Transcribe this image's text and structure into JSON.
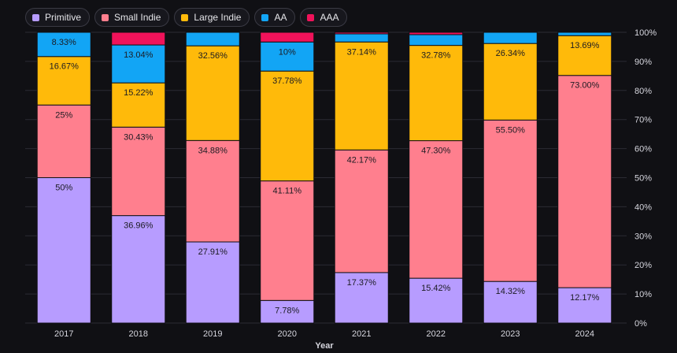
{
  "chart_data": {
    "type": "bar",
    "stacked": true,
    "xlabel": "Year",
    "ylabel": "",
    "ylim": [
      0,
      100
    ],
    "y_tick_suffix": "%",
    "y_ticks": [
      0,
      10,
      20,
      30,
      40,
      50,
      60,
      70,
      80,
      90,
      100
    ],
    "y_axis_side": "right",
    "grid": true,
    "legend_position": "top-left",
    "categories": [
      "2017",
      "2018",
      "2019",
      "2020",
      "2021",
      "2022",
      "2023",
      "2024"
    ],
    "series": [
      {
        "name": "Primitive",
        "color": "#b79cff",
        "values": [
          50,
          36.96,
          27.91,
          7.78,
          17.37,
          15.42,
          14.32,
          12.17
        ],
        "labels": [
          "50%",
          "36.96%",
          "27.91%",
          "7.78%",
          "17.37%",
          "15.42%",
          "14.32%",
          "12.17%"
        ]
      },
      {
        "name": "Small Indie",
        "color": "#ff7f8e",
        "values": [
          25,
          30.43,
          34.88,
          41.11,
          42.17,
          47.3,
          55.5,
          73.0
        ],
        "labels": [
          "25%",
          "30.43%",
          "34.88%",
          "41.11%",
          "42.17%",
          "47.30%",
          "55.50%",
          "73.00%"
        ]
      },
      {
        "name": "Large Indie",
        "color": "#ffba0a",
        "values": [
          16.67,
          15.22,
          32.56,
          37.78,
          37.14,
          32.78,
          26.34,
          13.69
        ],
        "labels": [
          "16.67%",
          "15.22%",
          "32.56%",
          "37.78%",
          "37.14%",
          "32.78%",
          "26.34%",
          "13.69%"
        ]
      },
      {
        "name": "AA",
        "color": "#12a5f5",
        "values": [
          8.33,
          13.04,
          4.65,
          10,
          2.78,
          3.7,
          3.84,
          1.14
        ],
        "labels": [
          "8.33%",
          "13.04%",
          "",
          "10%",
          "",
          "",
          "",
          ""
        ]
      },
      {
        "name": "AAA",
        "color": "#f0125a",
        "values": [
          0,
          4.35,
          0,
          3.33,
          0.54,
          0.8,
          0,
          0
        ],
        "labels": [
          "",
          "",
          "",
          "",
          "",
          "",
          "",
          ""
        ]
      }
    ]
  }
}
